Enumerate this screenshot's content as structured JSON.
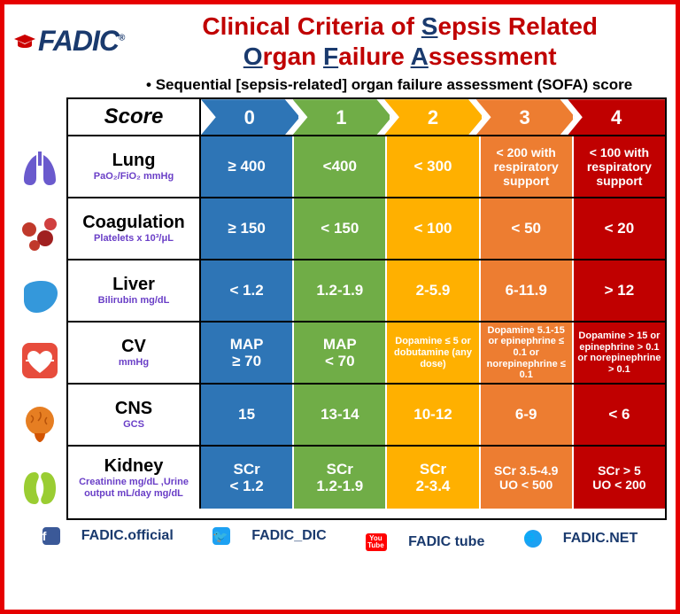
{
  "logo_text": "FADIC",
  "title_parts": [
    "Clinical Criteria of ",
    "S",
    "epsis Related ",
    "O",
    "rgan ",
    "F",
    "ailure ",
    "A",
    "ssessment"
  ],
  "subtitle": "Sequential [sepsis-related] organ failure assessment (SOFA) score",
  "score_label": "Score",
  "scores": [
    "0",
    "1",
    "2",
    "3",
    "4"
  ],
  "score_colors": [
    "#2e75b6",
    "#70ad47",
    "#ffb000",
    "#ed7d31",
    "#c00000"
  ],
  "rows": [
    {
      "label": "Lung",
      "sublabel": "PaO₂/FiO₂ mmHg",
      "icon": "lung",
      "cells": [
        {
          "t": "≥ 400",
          "sz": ""
        },
        {
          "t": "<400",
          "sz": ""
        },
        {
          "t": "< 300",
          "sz": ""
        },
        {
          "t": "< 200 with respiratory support",
          "sz": "md"
        },
        {
          "t": "< 100 with respiratory support",
          "sz": "md"
        }
      ]
    },
    {
      "label": "Coagulation",
      "sublabel": "Platelets x 10³/μL",
      "icon": "blood",
      "cells": [
        {
          "t": "≥ 150",
          "sz": ""
        },
        {
          "t": "< 150",
          "sz": ""
        },
        {
          "t": "< 100",
          "sz": ""
        },
        {
          "t": "< 50",
          "sz": ""
        },
        {
          "t": "< 20",
          "sz": ""
        }
      ]
    },
    {
      "label": "Liver",
      "sublabel": "Bilirubin mg/dL",
      "icon": "liver",
      "cells": [
        {
          "t": "< 1.2",
          "sz": ""
        },
        {
          "t": "1.2-1.9",
          "sz": ""
        },
        {
          "t": "2-5.9",
          "sz": ""
        },
        {
          "t": "6-11.9",
          "sz": ""
        },
        {
          "t": "> 12",
          "sz": ""
        }
      ]
    },
    {
      "label": "CV",
      "sublabel": "mmHg",
      "icon": "heart",
      "cells": [
        {
          "t": "MAP\n≥ 70",
          "sz": ""
        },
        {
          "t": "MAP\n< 70",
          "sz": ""
        },
        {
          "t": "Dopamine ≤ 5 or dobutamine (any dose)",
          "sz": "sm"
        },
        {
          "t": "Dopamine 5.1-15 or epinephrine ≤ 0.1 or norepinephrine ≤ 0.1",
          "sz": "sm"
        },
        {
          "t": "Dopamine > 15 or epinephrine > 0.1 or norepinephrine > 0.1",
          "sz": "sm"
        }
      ]
    },
    {
      "label": "CNS",
      "sublabel": "GCS",
      "icon": "brain",
      "cells": [
        {
          "t": "15",
          "sz": ""
        },
        {
          "t": "13-14",
          "sz": ""
        },
        {
          "t": "10-12",
          "sz": ""
        },
        {
          "t": "6-9",
          "sz": ""
        },
        {
          "t": "< 6",
          "sz": ""
        }
      ]
    },
    {
      "label": "Kidney",
      "sublabel": "Creatinine mg/dL ,Urine output mL/day mg/dL",
      "icon": "kidney",
      "cells": [
        {
          "t": "SCr\n< 1.2",
          "sz": ""
        },
        {
          "t": "SCr\n1.2-1.9",
          "sz": ""
        },
        {
          "t": "SCr\n2-3.4",
          "sz": ""
        },
        {
          "t": "SCr 3.5-4.9\nUO < 500",
          "sz": "md"
        },
        {
          "t": "SCr > 5\nUO < 200",
          "sz": "md"
        }
      ]
    }
  ],
  "icons": {
    "lung": "#6a5acd",
    "blood": "#c0392b",
    "liver": "#3498db",
    "heart": "#e74c3c",
    "brain": "#e67e22",
    "kidney": "#9acd32"
  },
  "footer": {
    "fb": "FADIC.official",
    "tw": "FADIC_DIC",
    "yt": "FADIC tube",
    "www": "FADIC.NET"
  }
}
